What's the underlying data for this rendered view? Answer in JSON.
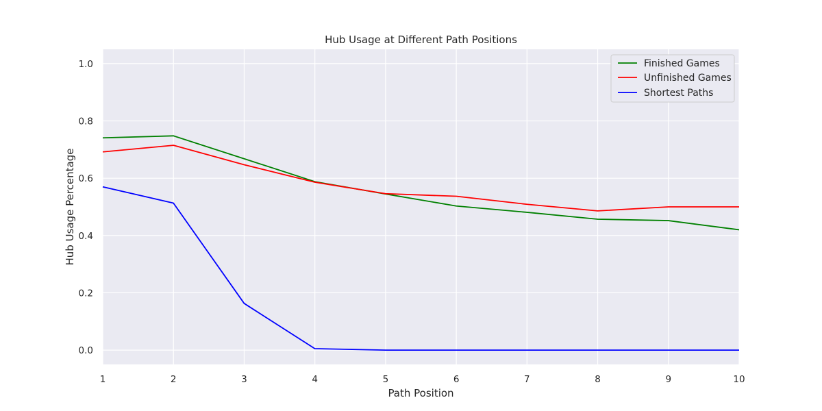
{
  "chart_data": {
    "type": "line",
    "title": "Hub Usage at Different Path Positions",
    "xlabel": "Path Position",
    "ylabel": "Hub Usage Percentage",
    "x": [
      1,
      2,
      3,
      4,
      5,
      6,
      7,
      8,
      9,
      10
    ],
    "xlim": [
      1,
      10
    ],
    "ylim": [
      -0.05,
      1.05
    ],
    "x_ticks": [
      "1",
      "2",
      "3",
      "4",
      "5",
      "6",
      "7",
      "8",
      "9",
      "10"
    ],
    "y_ticks": [
      "0.0",
      "0.2",
      "0.4",
      "0.6",
      "0.8",
      "1.0"
    ],
    "grid": true,
    "legend_position": "top-right",
    "series": [
      {
        "name": "Finished Games",
        "color": "#008000",
        "values": [
          0.741,
          0.748,
          0.668,
          0.588,
          0.545,
          0.503,
          0.481,
          0.457,
          0.452,
          0.42
        ]
      },
      {
        "name": "Unfinished Games",
        "color": "#ff0000",
        "values": [
          0.692,
          0.715,
          0.647,
          0.586,
          0.546,
          0.537,
          0.509,
          0.486,
          0.5,
          0.5
        ]
      },
      {
        "name": "Shortest Paths",
        "color": "#0000ff",
        "values": [
          0.57,
          0.513,
          0.163,
          0.005,
          0.0,
          0.0,
          0.0,
          0.0,
          0.0,
          0.0
        ]
      }
    ]
  }
}
